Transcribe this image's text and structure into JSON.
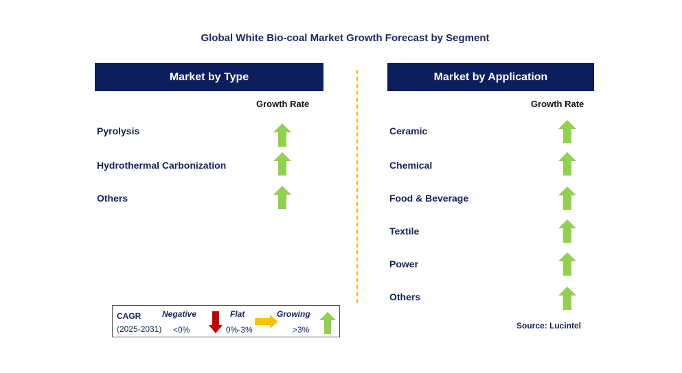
{
  "title": "Global White Bio-coal Market Growth Forecast by Segment",
  "left_panel": {
    "header": "Market by Type",
    "growth_rate_label": "Growth Rate",
    "items": [
      {
        "label": "Pyrolysis",
        "trend": "growing"
      },
      {
        "label": "Hydrothermal Carbonization",
        "trend": "growing"
      },
      {
        "label": "Others",
        "trend": "growing"
      }
    ]
  },
  "right_panel": {
    "header": "Market by Application",
    "growth_rate_label": "Growth Rate",
    "items": [
      {
        "label": "Ceramic",
        "trend": "growing"
      },
      {
        "label": "Chemical",
        "trend": "growing"
      },
      {
        "label": "Food & Beverage",
        "trend": "growing"
      },
      {
        "label": "Textile",
        "trend": "growing"
      },
      {
        "label": "Power",
        "trend": "growing"
      },
      {
        "label": "Others",
        "trend": "growing"
      }
    ]
  },
  "legend": {
    "cagr_label": "CAGR",
    "period": "(2025-2031)",
    "negative": {
      "label": "Negative",
      "range": "<0%",
      "icon": "red-down-arrow-icon",
      "color": "#c00000"
    },
    "flat": {
      "label": "Flat",
      "range": "0%-3%",
      "icon": "yellow-right-arrow-icon",
      "color": "#ffc000"
    },
    "growing": {
      "label": "Growing",
      "range": ">3%",
      "icon": "green-up-arrow-icon",
      "color": "#92d050"
    }
  },
  "source": "Source: Lucintel",
  "colors": {
    "header_bg": "#0c1f5c",
    "text": "#13235c",
    "divider": "#f2b600"
  }
}
